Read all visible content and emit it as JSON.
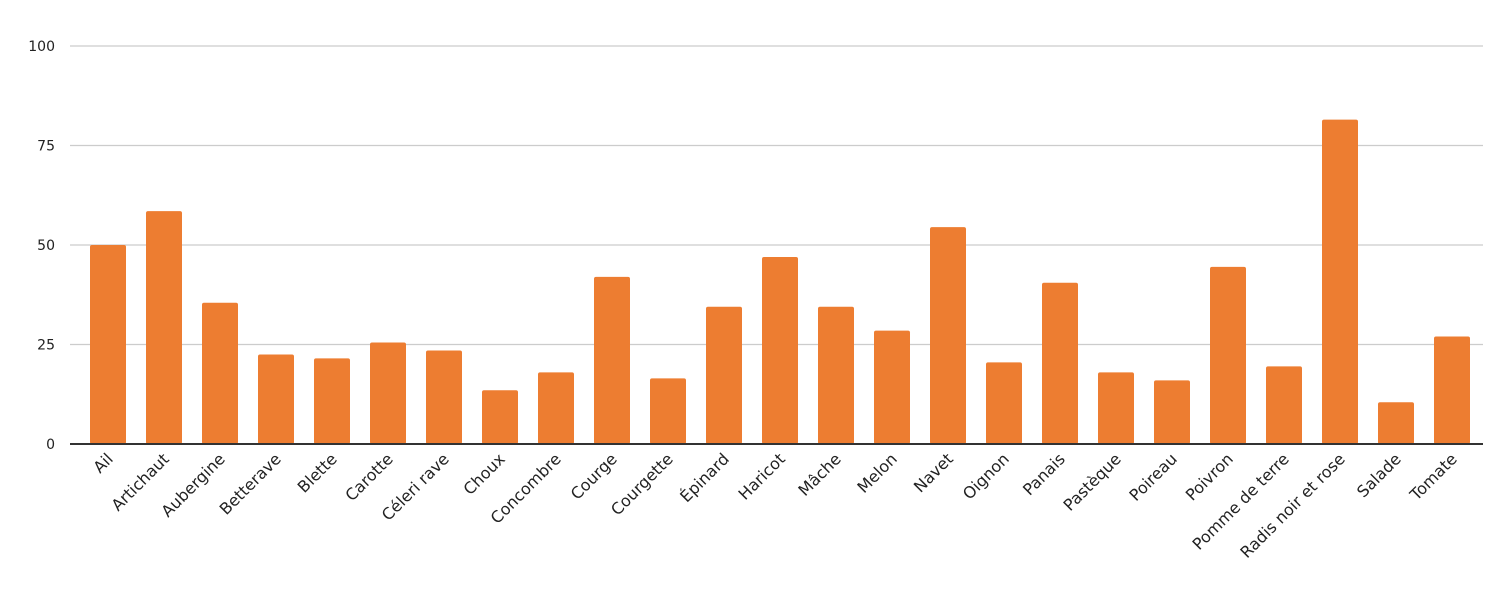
{
  "chart_data": {
    "type": "bar",
    "title": "",
    "xlabel": "",
    "ylabel": "",
    "categories": [
      "Ail",
      "Artichaut",
      "Aubergine",
      "Betterave",
      "Blette",
      "Carotte",
      "Céleri rave",
      "Choux",
      "Concombre",
      "Courge",
      "Courgette",
      "Épinard",
      "Haricot",
      "Mâche",
      "Melon",
      "Navet",
      "Oignon",
      "Panais",
      "Pastèque",
      "Poireau",
      "Poivron",
      "Pomme de terre",
      "Radis noir et rose",
      "Salade",
      "Tomate"
    ],
    "values": [
      50,
      58.5,
      35.5,
      22.5,
      21.5,
      25.5,
      23.5,
      13.5,
      18,
      42,
      16.5,
      34.5,
      47,
      34.5,
      28.5,
      54.5,
      20.5,
      40.5,
      18,
      16,
      44.5,
      19.5,
      81.5,
      10.5,
      27
    ],
    "ylim": [
      0,
      100
    ],
    "yticks": [
      0,
      25,
      50,
      75,
      100
    ],
    "grid": true,
    "legend": "none",
    "bar_color": "#ED7D31",
    "grid_color": "#CCCCCC",
    "axis_color": "#333333"
  }
}
